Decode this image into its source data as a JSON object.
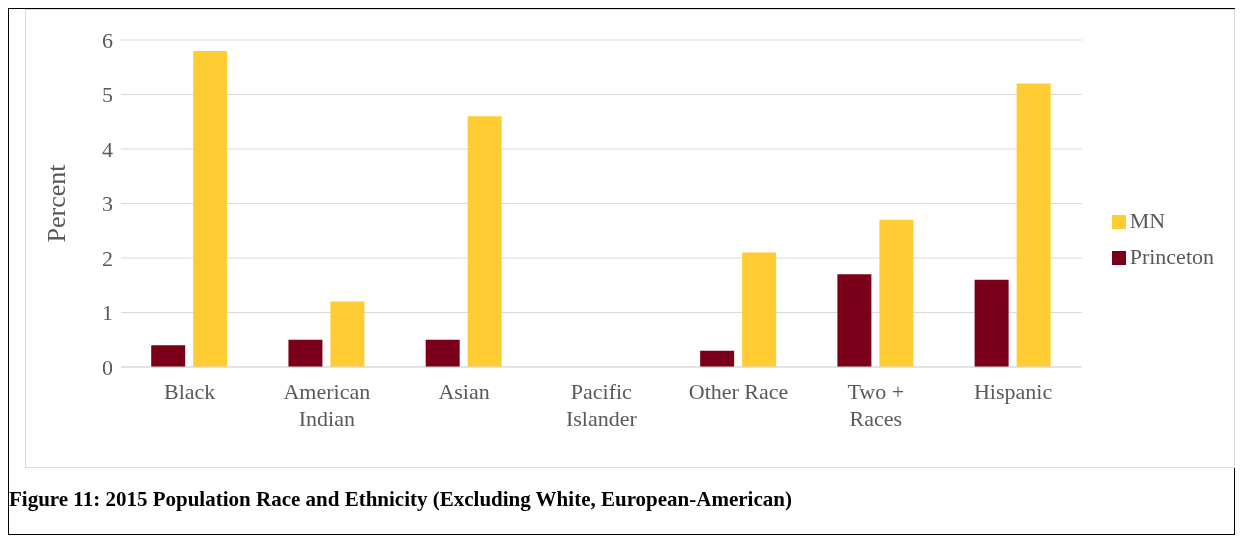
{
  "chart_data": {
    "type": "bar",
    "ylabel": "Percent",
    "categories": [
      "Black",
      "American Indian",
      "Asian",
      "Pacific Islander",
      "Other Race",
      "Two + Races",
      "Hispanic"
    ],
    "series": [
      {
        "name": "Princeton",
        "color": "#7a0019",
        "values": [
          0.4,
          0.5,
          0.5,
          0,
          0.3,
          1.7,
          1.6
        ]
      },
      {
        "name": "MN",
        "color": "#ffcc33",
        "values": [
          5.8,
          1.2,
          4.6,
          0,
          2.1,
          2.7,
          5.2
        ]
      }
    ],
    "ylim": [
      0,
      6
    ],
    "yticks": [
      0,
      1,
      2,
      3,
      4,
      5,
      6
    ],
    "grid": "y",
    "legend": "right",
    "annotations": [
      "Figure 11: 2015 Population Race and Ethnicity (Excluding White, European-American)"
    ]
  }
}
